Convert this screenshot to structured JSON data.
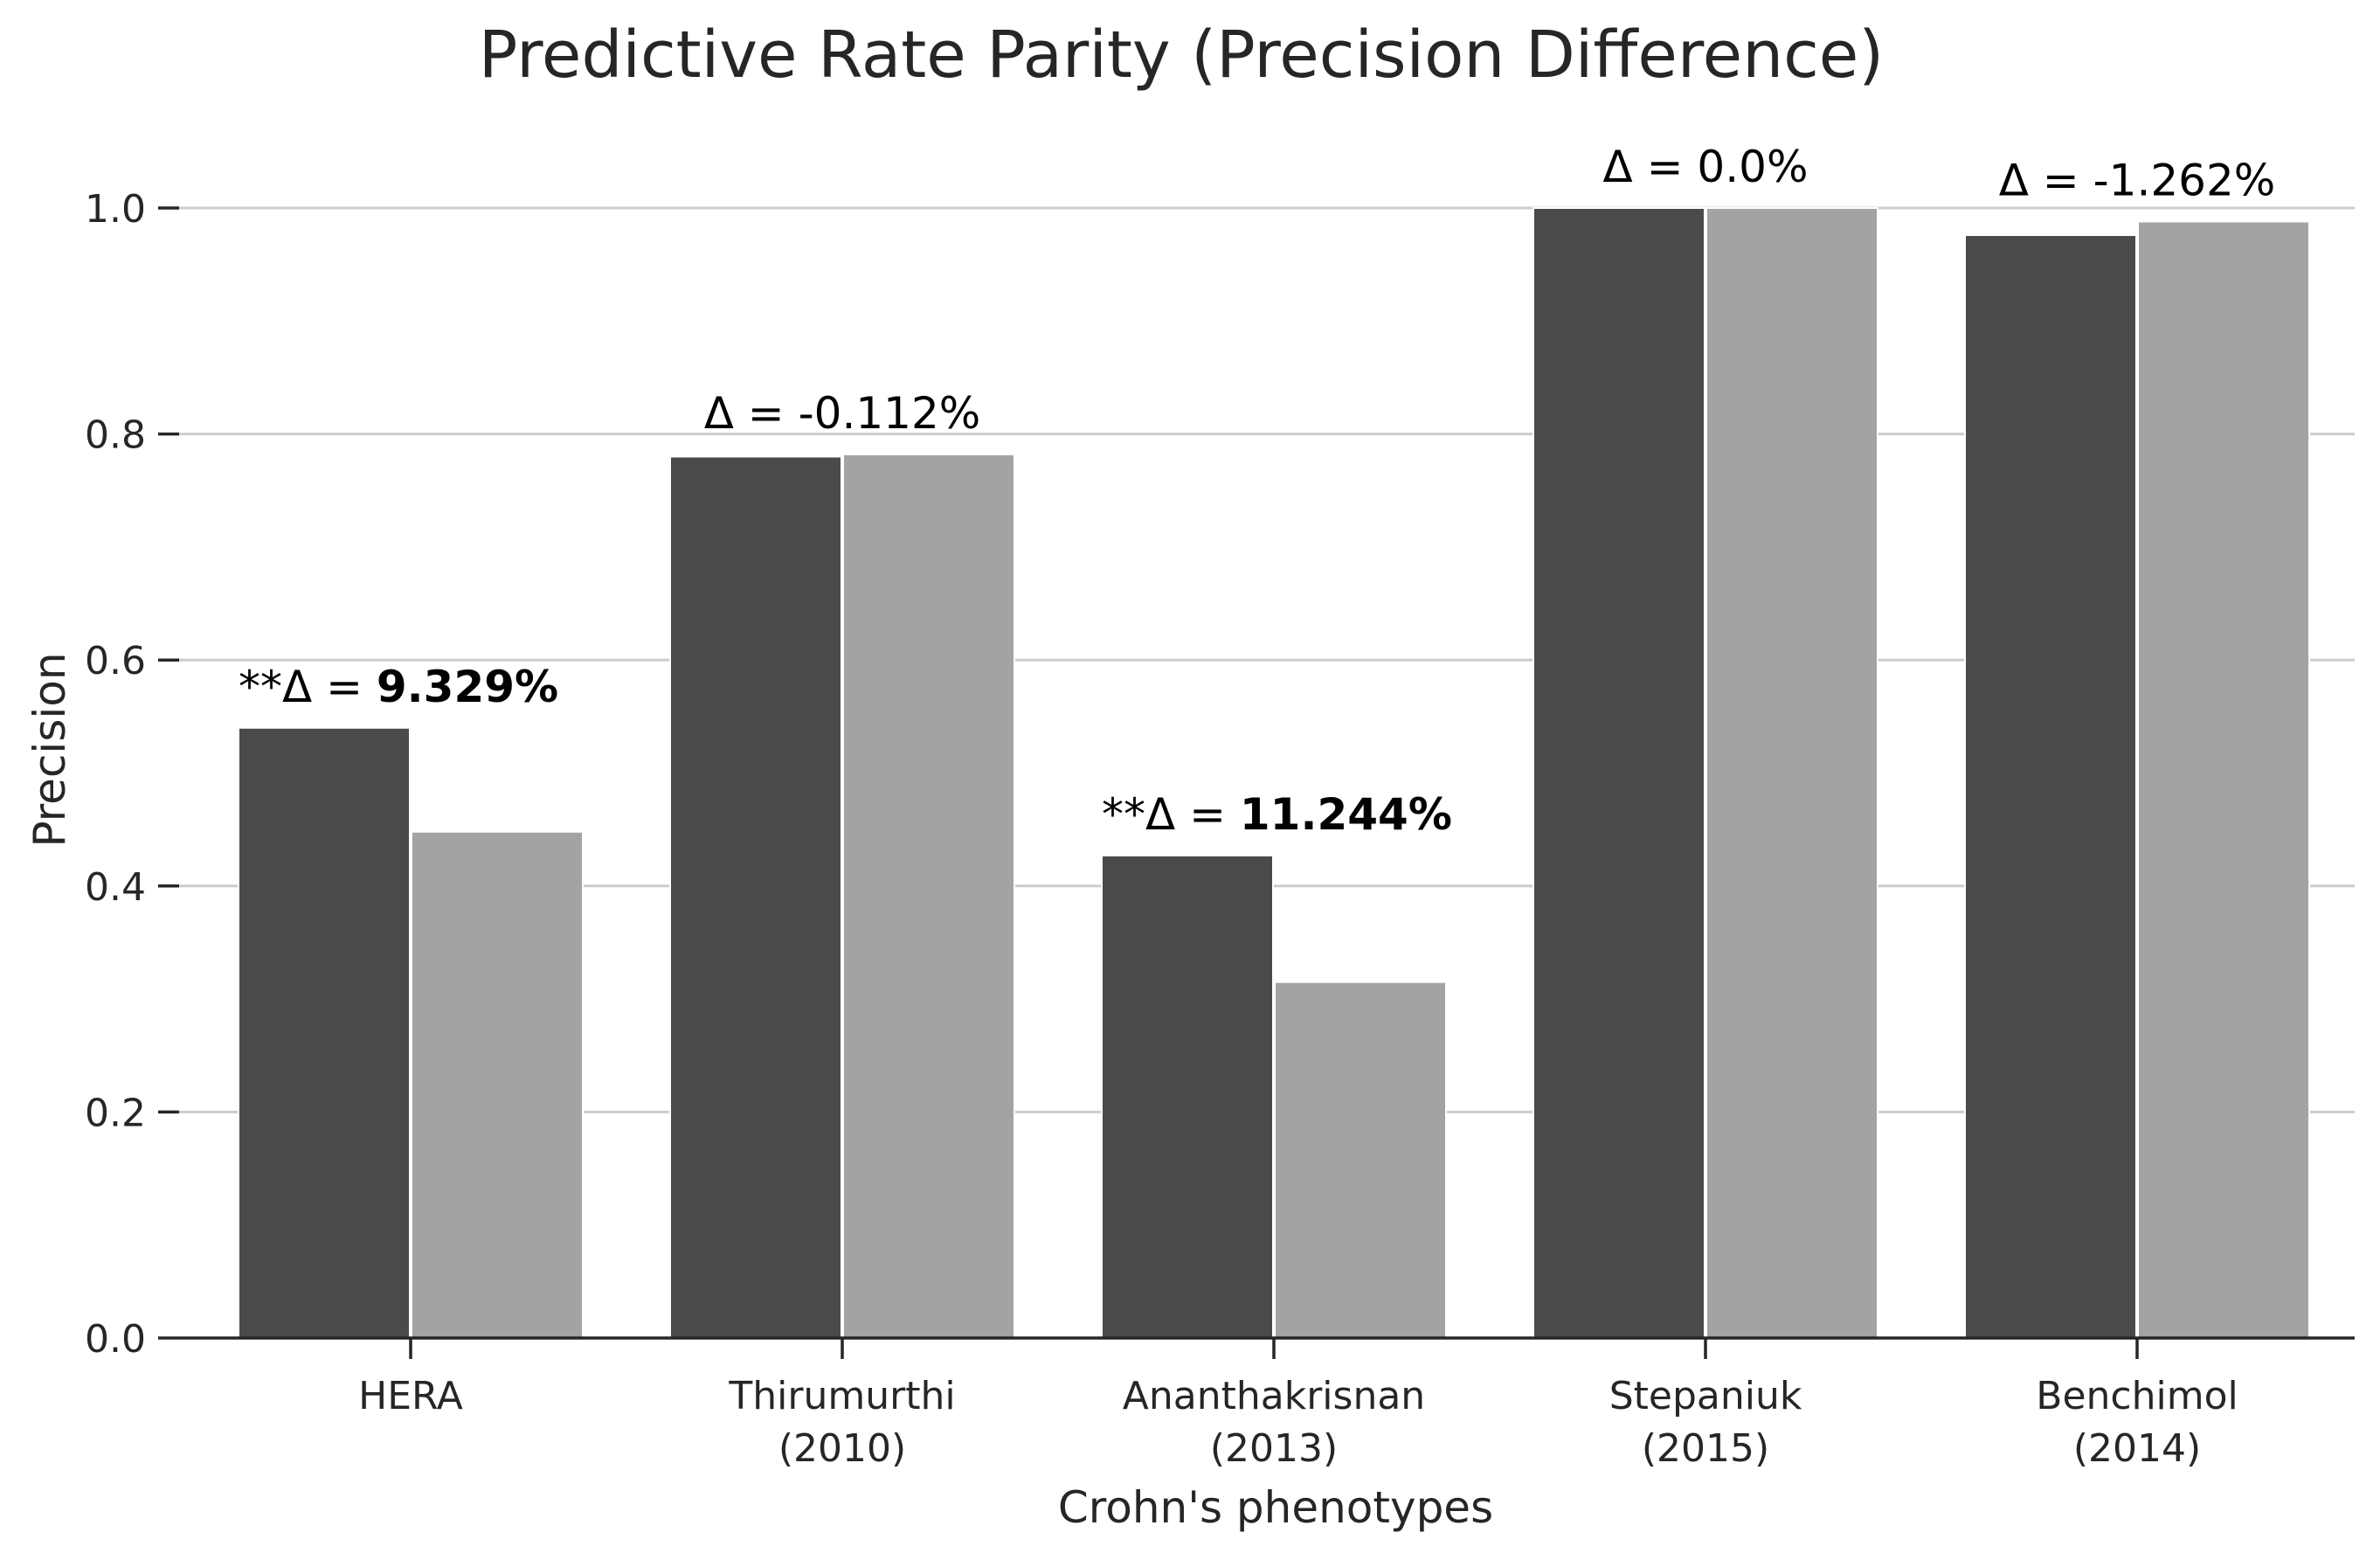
{
  "chart_data": {
    "type": "bar",
    "title": "Predictive Rate Parity (Precision Difference)",
    "xlabel": "Crohn's phenotypes",
    "ylabel": "Precision",
    "ylim": [
      0,
      1.05
    ],
    "yticks": [
      "0.0",
      "0.2",
      "0.4",
      "0.6",
      "0.8",
      "1.0"
    ],
    "grid": true,
    "legend": "none",
    "categories": [
      [
        "HERA"
      ],
      [
        "Thirumurthi",
        "(2010)"
      ],
      [
        "Ananthakrisnan",
        "(2013)"
      ],
      [
        "Stepaniuk",
        "(2015)"
      ],
      [
        "Benchimol",
        "(2014)"
      ]
    ],
    "series": [
      {
        "color": "#4a4a4a",
        "values": [
          0.54,
          0.78,
          0.427,
          1.0,
          0.976
        ]
      },
      {
        "color": "#a3a3a3",
        "values": [
          0.448,
          0.782,
          0.315,
          1.0,
          0.988
        ]
      }
    ],
    "annotations": [
      {
        "prefix": "**Δ = ",
        "value": "9.329%",
        "bold": true
      },
      {
        "prefix": "Δ = ",
        "value": "-0.112%",
        "bold": false
      },
      {
        "prefix": "**Δ = ",
        "value": "11.244%",
        "bold": true
      },
      {
        "prefix": "Δ = ",
        "value": "0.0%",
        "bold": false
      },
      {
        "prefix": "Δ = ",
        "value": "-1.262%",
        "bold": false
      }
    ]
  }
}
